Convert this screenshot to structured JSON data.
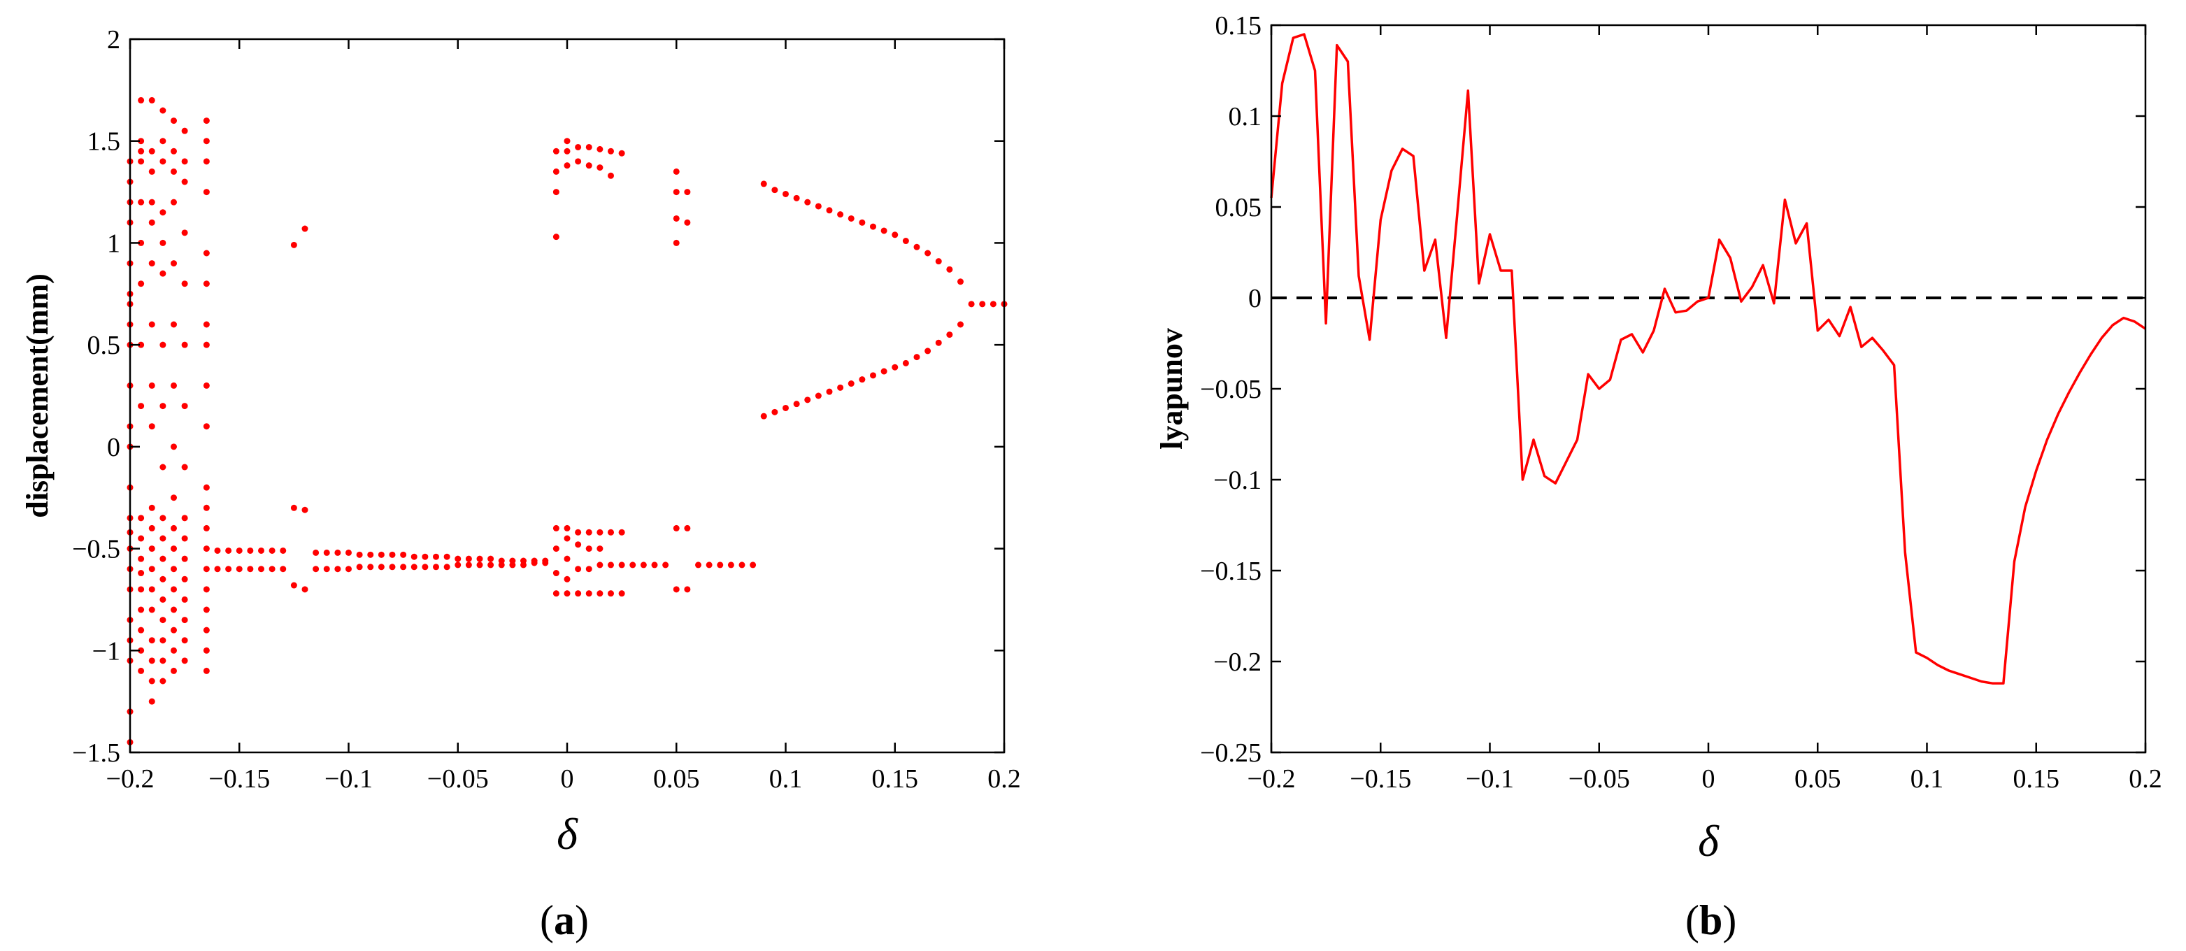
{
  "colors": {
    "data": "#ff0000",
    "axis": "#000000",
    "zero_line": "#000000"
  },
  "chart_data": [
    {
      "type": "scatter",
      "title": "",
      "xlabel": "δ",
      "ylabel": "displacement(mm)",
      "caption_label": "a",
      "xlim": [
        -0.2,
        0.2
      ],
      "ylim": [
        -1.5,
        2
      ],
      "xticks": [
        "-0.2",
        "-0.15",
        "-0.1",
        "-0.05",
        "0",
        "0.05",
        "0.1",
        "0.15",
        "0.2"
      ],
      "yticks": [
        "-1.5",
        "-1",
        "-0.5",
        "0",
        "0.5",
        "1",
        "1.5",
        "2"
      ],
      "grid": false,
      "series": [
        {
          "columns": [
            {
              "x": -0.2,
              "y": [
                -1.45,
                -1.3,
                -1.05,
                -0.95,
                -0.85,
                -0.7,
                -0.6,
                -0.5,
                -0.42,
                -0.35,
                -0.2,
                0.0,
                0.1,
                0.3,
                0.5,
                0.6,
                0.7,
                0.75,
                0.9,
                1.1,
                1.2,
                1.3,
                1.4
              ]
            },
            {
              "x": -0.195,
              "y": [
                -1.1,
                -1.0,
                -0.9,
                -0.8,
                -0.7,
                -0.62,
                -0.55,
                -0.45,
                -0.35,
                0.2,
                0.5,
                0.8,
                1.0,
                1.2,
                1.4,
                1.45,
                1.5,
                1.7
              ]
            },
            {
              "x": -0.19,
              "y": [
                -1.25,
                -1.15,
                -1.05,
                -0.95,
                -0.8,
                -0.7,
                -0.6,
                -0.5,
                -0.4,
                -0.3,
                0.1,
                0.3,
                0.6,
                0.9,
                1.1,
                1.2,
                1.35,
                1.45,
                1.7
              ]
            },
            {
              "x": -0.185,
              "y": [
                -1.15,
                -1.05,
                -0.95,
                -0.85,
                -0.75,
                -0.65,
                -0.55,
                -0.45,
                -0.35,
                -0.1,
                0.2,
                0.5,
                0.85,
                1.0,
                1.15,
                1.4,
                1.5,
                1.65
              ]
            },
            {
              "x": -0.18,
              "y": [
                -1.1,
                -1.0,
                -0.9,
                -0.8,
                -0.7,
                -0.6,
                -0.5,
                -0.4,
                -0.25,
                0.0,
                0.3,
                0.6,
                0.9,
                1.2,
                1.35,
                1.45,
                1.6
              ]
            },
            {
              "x": -0.175,
              "y": [
                -1.05,
                -0.95,
                -0.85,
                -0.75,
                -0.65,
                -0.55,
                -0.45,
                -0.35,
                -0.1,
                0.2,
                0.5,
                0.8,
                1.05,
                1.3,
                1.4,
                1.55
              ]
            },
            {
              "x": -0.165,
              "y": [
                -1.1,
                -1.0,
                -0.9,
                -0.8,
                -0.7,
                -0.6,
                -0.5,
                -0.4,
                -0.3,
                -0.2,
                0.1,
                0.3,
                0.5,
                0.6,
                0.8,
                0.95,
                1.25,
                1.4,
                1.5,
                1.6
              ]
            },
            {
              "x": -0.16,
              "y": [
                -0.6,
                -0.51
              ]
            },
            {
              "x": -0.155,
              "y": [
                -0.6,
                -0.51
              ]
            },
            {
              "x": -0.15,
              "y": [
                -0.6,
                -0.51
              ]
            },
            {
              "x": -0.145,
              "y": [
                -0.6,
                -0.51
              ]
            },
            {
              "x": -0.14,
              "y": [
                -0.6,
                -0.51
              ]
            },
            {
              "x": -0.135,
              "y": [
                -0.6,
                -0.51
              ]
            },
            {
              "x": -0.13,
              "y": [
                -0.6,
                -0.51
              ]
            },
            {
              "x": -0.125,
              "y": [
                -0.3,
                -0.68,
                0.99
              ]
            },
            {
              "x": -0.12,
              "y": [
                -0.31,
                -0.7,
                1.07
              ]
            },
            {
              "x": -0.115,
              "y": [
                -0.6,
                -0.52
              ]
            },
            {
              "x": -0.11,
              "y": [
                -0.6,
                -0.52
              ]
            },
            {
              "x": -0.105,
              "y": [
                -0.6,
                -0.52
              ]
            },
            {
              "x": -0.1,
              "y": [
                -0.6,
                -0.52
              ]
            },
            {
              "x": -0.095,
              "y": [
                -0.59,
                -0.53
              ]
            },
            {
              "x": -0.09,
              "y": [
                -0.59,
                -0.53
              ]
            },
            {
              "x": -0.085,
              "y": [
                -0.59,
                -0.53
              ]
            },
            {
              "x": -0.08,
              "y": [
                -0.59,
                -0.53
              ]
            },
            {
              "x": -0.075,
              "y": [
                -0.59,
                -0.53
              ]
            },
            {
              "x": -0.07,
              "y": [
                -0.59,
                -0.54
              ]
            },
            {
              "x": -0.065,
              "y": [
                -0.59,
                -0.54
              ]
            },
            {
              "x": -0.06,
              "y": [
                -0.59,
                -0.54
              ]
            },
            {
              "x": -0.055,
              "y": [
                -0.59,
                -0.54
              ]
            },
            {
              "x": -0.05,
              "y": [
                -0.58,
                -0.55
              ]
            },
            {
              "x": -0.045,
              "y": [
                -0.58,
                -0.55
              ]
            },
            {
              "x": -0.04,
              "y": [
                -0.58,
                -0.55
              ]
            },
            {
              "x": -0.035,
              "y": [
                -0.58,
                -0.55
              ]
            },
            {
              "x": -0.03,
              "y": [
                -0.58,
                -0.56
              ]
            },
            {
              "x": -0.025,
              "y": [
                -0.58,
                -0.56
              ]
            },
            {
              "x": -0.02,
              "y": [
                -0.58,
                -0.56
              ]
            },
            {
              "x": -0.015,
              "y": [
                -0.57,
                -0.56
              ]
            },
            {
              "x": -0.01,
              "y": [
                -0.57,
                -0.56
              ]
            },
            {
              "x": -0.005,
              "y": [
                -0.72,
                -0.62,
                -0.5,
                -0.4,
                1.03,
                1.25,
                1.35,
                1.45
              ]
            },
            {
              "x": 0.0,
              "y": [
                -0.72,
                -0.65,
                -0.55,
                -0.45,
                -0.4,
                1.38,
                1.45,
                1.5
              ]
            },
            {
              "x": 0.005,
              "y": [
                -0.72,
                -0.6,
                -0.48,
                -0.42,
                1.4,
                1.47
              ]
            },
            {
              "x": 0.01,
              "y": [
                -0.72,
                -0.6,
                -0.5,
                -0.42,
                1.38,
                1.47
              ]
            },
            {
              "x": 0.015,
              "y": [
                -0.72,
                -0.58,
                -0.5,
                -0.42,
                1.37,
                1.46
              ]
            },
            {
              "x": 0.02,
              "y": [
                -0.72,
                -0.58,
                -0.42,
                1.33,
                1.45
              ]
            },
            {
              "x": 0.025,
              "y": [
                -0.72,
                -0.58,
                -0.42,
                1.44
              ]
            },
            {
              "x": 0.03,
              "y": [
                -0.58
              ]
            },
            {
              "x": 0.035,
              "y": [
                -0.58
              ]
            },
            {
              "x": 0.04,
              "y": [
                -0.58
              ]
            },
            {
              "x": 0.045,
              "y": [
                -0.58
              ]
            },
            {
              "x": 0.05,
              "y": [
                -0.7,
                -0.4,
                1.0,
                1.12,
                1.25,
                1.35
              ]
            },
            {
              "x": 0.055,
              "y": [
                -0.7,
                -0.4,
                1.1,
                1.25
              ]
            },
            {
              "x": 0.06,
              "y": [
                -0.58
              ]
            },
            {
              "x": 0.065,
              "y": [
                -0.58
              ]
            },
            {
              "x": 0.07,
              "y": [
                -0.58
              ]
            },
            {
              "x": 0.075,
              "y": [
                -0.58
              ]
            },
            {
              "x": 0.08,
              "y": [
                -0.58
              ]
            },
            {
              "x": 0.085,
              "y": [
                -0.58
              ]
            },
            {
              "x": 0.09,
              "y": [
                0.15,
                1.29
              ]
            },
            {
              "x": 0.095,
              "y": [
                0.17,
                1.26
              ]
            },
            {
              "x": 0.1,
              "y": [
                0.19,
                1.24
              ]
            },
            {
              "x": 0.105,
              "y": [
                0.21,
                1.22
              ]
            },
            {
              "x": 0.11,
              "y": [
                0.23,
                1.2
              ]
            },
            {
              "x": 0.115,
              "y": [
                0.25,
                1.18
              ]
            },
            {
              "x": 0.12,
              "y": [
                0.27,
                1.16
              ]
            },
            {
              "x": 0.125,
              "y": [
                0.29,
                1.14
              ]
            },
            {
              "x": 0.13,
              "y": [
                0.31,
                1.12
              ]
            },
            {
              "x": 0.135,
              "y": [
                0.33,
                1.1
              ]
            },
            {
              "x": 0.14,
              "y": [
                0.35,
                1.08
              ]
            },
            {
              "x": 0.145,
              "y": [
                0.37,
                1.06
              ]
            },
            {
              "x": 0.15,
              "y": [
                0.39,
                1.04
              ]
            },
            {
              "x": 0.155,
              "y": [
                0.41,
                1.01
              ]
            },
            {
              "x": 0.16,
              "y": [
                0.44,
                0.98
              ]
            },
            {
              "x": 0.165,
              "y": [
                0.47,
                0.95
              ]
            },
            {
              "x": 0.17,
              "y": [
                0.51,
                0.91
              ]
            },
            {
              "x": 0.175,
              "y": [
                0.55,
                0.87
              ]
            },
            {
              "x": 0.18,
              "y": [
                0.6,
                0.81
              ]
            },
            {
              "x": 0.185,
              "y": [
                0.7
              ]
            },
            {
              "x": 0.19,
              "y": [
                0.7
              ]
            },
            {
              "x": 0.195,
              "y": [
                0.7
              ]
            },
            {
              "x": 0.2,
              "y": [
                0.7
              ]
            }
          ]
        }
      ]
    },
    {
      "type": "line",
      "title": "",
      "xlabel": "δ",
      "ylabel": "lyapunov",
      "caption_label": "b",
      "xlim": [
        -0.2,
        0.2
      ],
      "ylim": [
        -0.25,
        0.15
      ],
      "xticks": [
        "-0.2",
        "-0.15",
        "-0.1",
        "-0.05",
        "0",
        "0.05",
        "0.1",
        "0.15",
        "0.2"
      ],
      "yticks": [
        "-0.25",
        "-0.2",
        "-0.15",
        "-0.1",
        "-0.05",
        "0",
        "0.05",
        "0.1",
        "0.15"
      ],
      "grid": false,
      "reference_line": {
        "y": 0,
        "style": "dashed"
      },
      "series": [
        {
          "x": [
            -0.2,
            -0.195,
            -0.19,
            -0.185,
            -0.18,
            -0.175,
            -0.17,
            -0.165,
            -0.16,
            -0.155,
            -0.15,
            -0.145,
            -0.14,
            -0.135,
            -0.13,
            -0.125,
            -0.12,
            -0.115,
            -0.11,
            -0.105,
            -0.1,
            -0.095,
            -0.09,
            -0.085,
            -0.08,
            -0.075,
            -0.07,
            -0.065,
            -0.06,
            -0.055,
            -0.05,
            -0.045,
            -0.04,
            -0.035,
            -0.03,
            -0.025,
            -0.02,
            -0.015,
            -0.01,
            -0.005,
            0.0,
            0.005,
            0.01,
            0.015,
            0.02,
            0.025,
            0.03,
            0.035,
            0.04,
            0.045,
            0.05,
            0.055,
            0.06,
            0.065,
            0.07,
            0.075,
            0.08,
            0.085,
            0.09,
            0.095,
            0.1,
            0.105,
            0.11,
            0.115,
            0.12,
            0.125,
            0.13,
            0.135,
            0.14,
            0.145,
            0.15,
            0.155,
            0.16,
            0.165,
            0.17,
            0.175,
            0.18,
            0.185,
            0.19,
            0.195,
            0.2
          ],
          "y": [
            0.055,
            0.118,
            0.143,
            0.145,
            0.125,
            -0.014,
            0.139,
            0.13,
            0.012,
            -0.023,
            0.043,
            0.07,
            0.082,
            0.078,
            0.015,
            0.032,
            -0.022,
            0.045,
            0.114,
            0.008,
            0.035,
            0.015,
            0.015,
            -0.1,
            -0.078,
            -0.098,
            -0.102,
            -0.09,
            -0.078,
            -0.042,
            -0.05,
            -0.045,
            -0.023,
            -0.02,
            -0.03,
            -0.018,
            0.005,
            -0.008,
            -0.007,
            -0.002,
            0.0,
            0.032,
            0.022,
            -0.002,
            0.006,
            0.018,
            -0.003,
            0.054,
            0.03,
            0.041,
            -0.018,
            -0.012,
            -0.021,
            -0.005,
            -0.027,
            -0.022,
            -0.029,
            -0.037,
            -0.14,
            -0.195,
            -0.198,
            -0.202,
            -0.205,
            -0.207,
            -0.209,
            -0.211,
            -0.212,
            -0.212,
            -0.145,
            -0.115,
            -0.095,
            -0.078,
            -0.064,
            -0.052,
            -0.041,
            -0.031,
            -0.022,
            -0.015,
            -0.011,
            -0.013,
            -0.017
          ]
        }
      ]
    }
  ]
}
